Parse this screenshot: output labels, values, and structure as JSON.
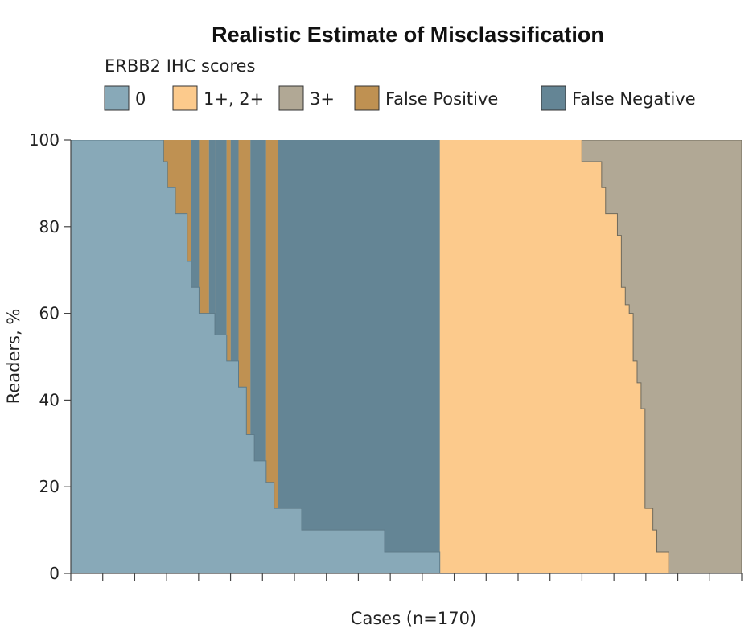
{
  "chart_data": {
    "type": "area",
    "title": "Realistic Estimate of Misclassification",
    "xlabel": "Cases (n=170)",
    "ylabel": "Readers, %",
    "ylim": [
      0,
      100
    ],
    "xlim": [
      0,
      170
    ],
    "yticks": [
      0,
      20,
      40,
      60,
      80,
      100
    ],
    "yticklabels": [
      "0",
      "20",
      "40",
      "60",
      "80",
      "100"
    ],
    "x_tick_count": 22,
    "grid": false,
    "legend": {
      "title": "ERBB2 IHC scores",
      "placement": "top",
      "entries": [
        {
          "key": "score0",
          "label": "0",
          "color": "#88A9B8"
        },
        {
          "key": "score12",
          "label": "1+, 2+",
          "color": "#FCCA8C"
        },
        {
          "key": "score3",
          "label": "3+",
          "color": "#B1A895"
        },
        {
          "key": "fp",
          "label": "False Positive",
          "color": "#BF9152"
        },
        {
          "key": "fn",
          "label": "False Negative",
          "color": "#648595"
        }
      ]
    },
    "series": [
      {
        "name": "0",
        "color": "#88A9B8",
        "edge": "#5e7b89",
        "values": [
          [
            0,
            100
          ],
          [
            23.5,
            100
          ],
          [
            23.5,
            95
          ],
          [
            24.5,
            95
          ],
          [
            24.5,
            89
          ],
          [
            26.5,
            89
          ],
          [
            26.5,
            83
          ],
          [
            29.5,
            83
          ],
          [
            29.5,
            72
          ],
          [
            30.5,
            72
          ],
          [
            30.5,
            66
          ],
          [
            32.5,
            66
          ],
          [
            32.5,
            60
          ],
          [
            36.5,
            60
          ],
          [
            36.5,
            55
          ],
          [
            39.5,
            55
          ],
          [
            39.5,
            49
          ],
          [
            42.5,
            49
          ],
          [
            42.5,
            43
          ],
          [
            44.5,
            43
          ],
          [
            44.5,
            32
          ],
          [
            46.5,
            32
          ],
          [
            46.5,
            26
          ],
          [
            49.5,
            26
          ],
          [
            49.5,
            21
          ],
          [
            51.5,
            21
          ],
          [
            51.5,
            15
          ],
          [
            58.5,
            15
          ],
          [
            58.5,
            10
          ],
          [
            79.5,
            10
          ],
          [
            79.5,
            5
          ],
          [
            93.5,
            5
          ],
          [
            93.5,
            0
          ],
          [
            0,
            0
          ]
        ]
      },
      {
        "name": "3+",
        "color": "#B1A895",
        "edge": "#6f6a5c",
        "values": [
          [
            170,
            100
          ],
          [
            129.5,
            100
          ],
          [
            129.5,
            95
          ],
          [
            134.5,
            95
          ],
          [
            134.5,
            89
          ],
          [
            135.5,
            89
          ],
          [
            135.5,
            83
          ],
          [
            138.5,
            83
          ],
          [
            138.5,
            78
          ],
          [
            139.5,
            78
          ],
          [
            139.5,
            66
          ],
          [
            140.5,
            66
          ],
          [
            140.5,
            62
          ],
          [
            141.5,
            62
          ],
          [
            141.5,
            60
          ],
          [
            142.5,
            60
          ],
          [
            142.5,
            49
          ],
          [
            143.5,
            49
          ],
          [
            143.5,
            44
          ],
          [
            144.5,
            44
          ],
          [
            144.5,
            38
          ],
          [
            145.5,
            38
          ],
          [
            145.5,
            15
          ],
          [
            147.5,
            15
          ],
          [
            147.5,
            10
          ],
          [
            148.5,
            10
          ],
          [
            148.5,
            5
          ],
          [
            151.5,
            5
          ],
          [
            151.5,
            0
          ],
          [
            170,
            0
          ]
        ]
      }
    ],
    "stripes": [
      {
        "type": "fp",
        "x0": 23.5,
        "x1": 30.5
      },
      {
        "type": "fn",
        "x0": 30.5,
        "x1": 32.5
      },
      {
        "type": "fp",
        "x0": 32.5,
        "x1": 35.0
      },
      {
        "type": "fn",
        "x0": 35.0,
        "x1": 36.5
      },
      {
        "type": "fn",
        "x0": 36.5,
        "x1": 39.5
      },
      {
        "type": "fp",
        "x0": 39.5,
        "x1": 40.5
      },
      {
        "type": "fn",
        "x0": 40.5,
        "x1": 42.5
      },
      {
        "type": "fp",
        "x0": 42.5,
        "x1": 45.5
      },
      {
        "type": "fn",
        "x0": 45.5,
        "x1": 49.5
      },
      {
        "type": "fp",
        "x0": 49.5,
        "x1": 52.5
      },
      {
        "type": "fn",
        "x0": 52.5,
        "x1": 93.5
      }
    ]
  }
}
